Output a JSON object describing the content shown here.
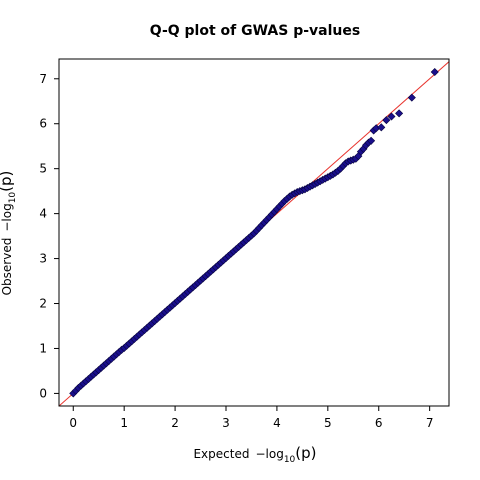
{
  "chart_data": {
    "type": "scatter",
    "title": "Q-Q plot of GWAS p-values",
    "xlabel": {
      "prefix": "Expected",
      "math": "−log",
      "sub": "10",
      "arg": "(p)"
    },
    "ylabel": {
      "prefix": "Observed",
      "math": "−log",
      "sub": "10",
      "arg": "(p)"
    },
    "xlim": [
      -0.28,
      7.38
    ],
    "ylim": [
      -0.28,
      7.44
    ],
    "x_ticks": [
      0,
      1,
      2,
      3,
      4,
      5,
      6,
      7
    ],
    "y_ticks": [
      0,
      1,
      2,
      3,
      4,
      5,
      6,
      7
    ],
    "grid": false,
    "legend": "none",
    "reference_line": {
      "type": "y=x",
      "color": "#e8342e"
    },
    "series": [
      {
        "marker": "diamond",
        "color": "#1a0f8c",
        "x": [
          0.0,
          0.05,
          0.1,
          0.15,
          0.2,
          0.25,
          0.3,
          0.35,
          0.4,
          0.45,
          0.5,
          0.55,
          0.6,
          0.65,
          0.7,
          0.75,
          0.8,
          0.85,
          0.9,
          0.95,
          1.0,
          1.05,
          1.1,
          1.15,
          1.2,
          1.25,
          1.3,
          1.35,
          1.4,
          1.45,
          1.5,
          1.55,
          1.6,
          1.65,
          1.7,
          1.75,
          1.8,
          1.85,
          1.9,
          1.95,
          2.0,
          2.05,
          2.1,
          2.15,
          2.2,
          2.25,
          2.3,
          2.35,
          2.4,
          2.45,
          2.5,
          2.55,
          2.6,
          2.65,
          2.7,
          2.75,
          2.8,
          2.85,
          2.9,
          2.95,
          3.0,
          3.05,
          3.1,
          3.15,
          3.2,
          3.25,
          3.3,
          3.35,
          3.4,
          3.45,
          3.5,
          3.55,
          3.6,
          3.65,
          3.7,
          3.75,
          3.8,
          3.85,
          3.9,
          3.95,
          4.0,
          4.05,
          4.1,
          4.15,
          4.2,
          4.25,
          4.3,
          4.35,
          4.4,
          4.45,
          4.5,
          4.55,
          4.6,
          4.65,
          4.7,
          4.75,
          4.8,
          4.85,
          4.9,
          4.95,
          5.0,
          5.05,
          5.1,
          5.15,
          5.2,
          5.25,
          5.3,
          5.35,
          5.4,
          5.45,
          5.5,
          5.55,
          5.6,
          5.65,
          5.7,
          5.75,
          5.8,
          5.85,
          5.9,
          5.95,
          6.05,
          6.15,
          6.25,
          6.4,
          6.65,
          7.1
        ],
        "y": [
          0.0,
          0.06,
          0.12,
          0.17,
          0.22,
          0.27,
          0.32,
          0.37,
          0.42,
          0.47,
          0.52,
          0.57,
          0.62,
          0.67,
          0.72,
          0.77,
          0.82,
          0.87,
          0.92,
          0.97,
          1.01,
          1.06,
          1.11,
          1.16,
          1.21,
          1.26,
          1.31,
          1.36,
          1.41,
          1.46,
          1.51,
          1.56,
          1.61,
          1.66,
          1.71,
          1.76,
          1.81,
          1.86,
          1.91,
          1.96,
          2.01,
          2.06,
          2.11,
          2.16,
          2.21,
          2.26,
          2.31,
          2.36,
          2.41,
          2.46,
          2.51,
          2.56,
          2.61,
          2.66,
          2.71,
          2.76,
          2.81,
          2.86,
          2.91,
          2.96,
          3.01,
          3.06,
          3.11,
          3.16,
          3.21,
          3.26,
          3.31,
          3.36,
          3.41,
          3.46,
          3.51,
          3.56,
          3.62,
          3.68,
          3.74,
          3.8,
          3.86,
          3.92,
          3.98,
          4.04,
          4.1,
          4.16,
          4.22,
          4.28,
          4.33,
          4.38,
          4.42,
          4.45,
          4.48,
          4.5,
          4.52,
          4.54,
          4.57,
          4.6,
          4.63,
          4.66,
          4.69,
          4.72,
          4.75,
          4.78,
          4.81,
          4.84,
          4.87,
          4.91,
          4.95,
          5.0,
          5.06,
          5.12,
          5.16,
          5.18,
          5.2,
          5.22,
          5.28,
          5.38,
          5.44,
          5.52,
          5.58,
          5.62,
          5.85,
          5.9,
          5.92,
          6.08,
          6.16,
          6.23,
          6.58,
          7.15
        ]
      }
    ]
  }
}
